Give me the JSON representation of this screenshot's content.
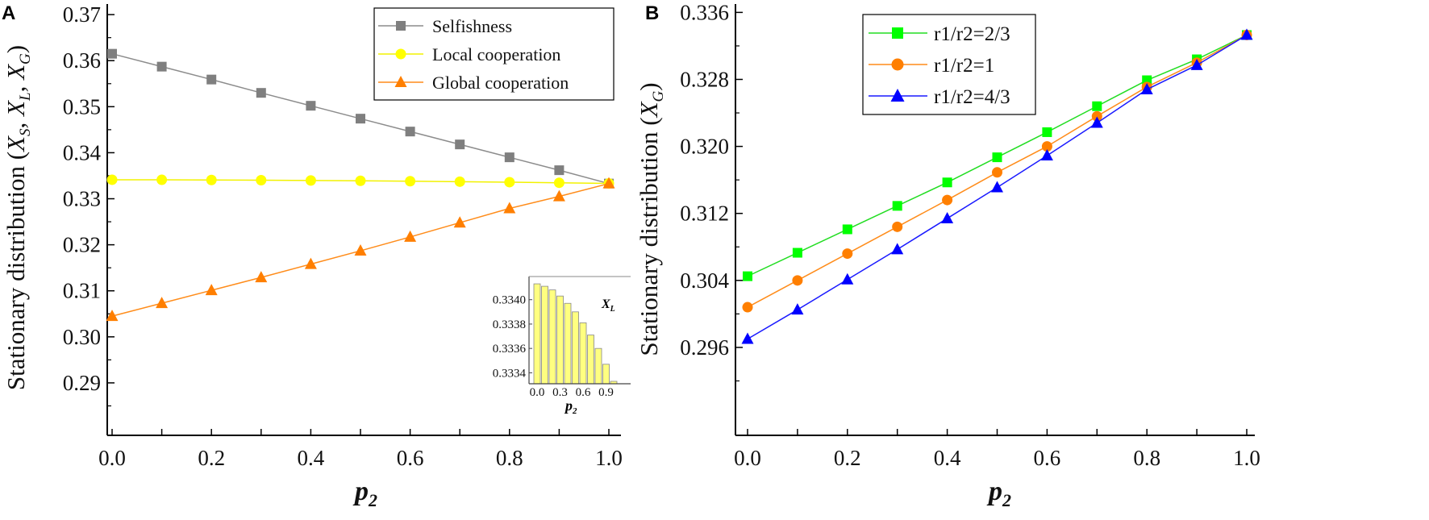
{
  "chart_data": [
    {
      "type": "line",
      "panel": "A",
      "title": "",
      "xlabel": "p",
      "xlabel_sub": "2",
      "ylabel": "Stationary distribution (X",
      "ylabel_parts": [
        "Stationary distribution (",
        "X",
        "S",
        ", ",
        "X",
        "L",
        ", ",
        "X",
        "G",
        ")"
      ],
      "xlim": [
        0,
        1
      ],
      "ylim": [
        0.2786,
        0.3723
      ],
      "xticks": [
        "0.0",
        "0.2",
        "0.4",
        "0.6",
        "0.8",
        "1.0"
      ],
      "yticks": [
        "0.29",
        "0.30",
        "0.31",
        "0.32",
        "0.33",
        "0.34",
        "0.35",
        "0.36",
        "0.37"
      ],
      "legend_position": "top-right",
      "x": [
        0,
        0.1,
        0.2,
        0.3,
        0.4,
        0.5,
        0.6,
        0.7,
        0.8,
        0.9,
        1.0
      ],
      "series": [
        {
          "name": "Selfishness",
          "color": "#7f7f7f",
          "line": "#8c8c8c",
          "marker": "square",
          "values": [
            0.3615,
            0.3587,
            0.3559,
            0.353,
            0.3502,
            0.3474,
            0.3446,
            0.3418,
            0.339,
            0.3362,
            0.3333
          ]
        },
        {
          "name": "Local cooperation",
          "color": "#ffff00",
          "line": "#f2f200",
          "marker": "circle",
          "values": [
            0.33413,
            0.33411,
            0.33408,
            0.33403,
            0.33397,
            0.3339,
            0.33381,
            0.33371,
            0.3336,
            0.33347,
            0.33333
          ]
        },
        {
          "name": "Global cooperation",
          "color": "#ff7f00",
          "line": "#ff8c1a",
          "marker": "triangle",
          "values": [
            0.3045,
            0.3073,
            0.3101,
            0.3129,
            0.3158,
            0.3187,
            0.3217,
            0.3248,
            0.3279,
            0.3305,
            0.3333
          ]
        }
      ],
      "inset": {
        "type": "bar",
        "label": "X",
        "label_sub": "L",
        "xlabel": "p",
        "xlabel_sub": "2",
        "x": [
          0,
          0.1,
          0.2,
          0.3,
          0.4,
          0.5,
          0.6,
          0.7,
          0.8,
          0.9,
          1.0
        ],
        "values": [
          0.33413,
          0.33411,
          0.33408,
          0.33403,
          0.33397,
          0.3339,
          0.33381,
          0.33371,
          0.3336,
          0.33347,
          0.33333
        ],
        "xticks": [
          "0.0",
          "0.3",
          "0.6",
          "0.9"
        ],
        "yticks": [
          "0.3334",
          "0.3336",
          "0.3338",
          "0.3340"
        ],
        "ylim": [
          0.33331,
          0.33419
        ],
        "color": "#ffff80"
      }
    },
    {
      "type": "line",
      "panel": "B",
      "title": "",
      "xlabel": "p",
      "xlabel_sub": "2",
      "ylabel_parts": [
        "Stationary distribution (",
        "X",
        "G",
        ")"
      ],
      "xlim": [
        0,
        1
      ],
      "ylim": [
        0.2855,
        0.337
      ],
      "xticks": [
        "0.0",
        "0.2",
        "0.4",
        "0.6",
        "0.8",
        "1.0"
      ],
      "yticks": [
        "0.296",
        "0.304",
        "0.312",
        "0.320",
        "0.328",
        "0.336"
      ],
      "legend_position": "top-left",
      "x": [
        0,
        0.1,
        0.2,
        0.3,
        0.4,
        0.5,
        0.6,
        0.7,
        0.8,
        0.9,
        1.0
      ],
      "series": [
        {
          "name": "r1/r2=2/3",
          "color": "#00ff00",
          "line": "#22dd22",
          "marker": "square",
          "values": [
            0.3045,
            0.3073,
            0.3101,
            0.3129,
            0.3157,
            0.3187,
            0.3217,
            0.3248,
            0.3279,
            0.3304,
            0.3333
          ]
        },
        {
          "name": "r1/r2=1",
          "color": "#ff7f00",
          "line": "#ff8c1a",
          "marker": "circle",
          "values": [
            0.3008,
            0.304,
            0.3072,
            0.3104,
            0.3136,
            0.3169,
            0.32,
            0.3236,
            0.3271,
            0.33,
            0.3333
          ]
        },
        {
          "name": "r1/r2=4/3",
          "color": "#0000ff",
          "line": "#1a1aff",
          "marker": "triangle",
          "values": [
            0.297,
            0.3005,
            0.3041,
            0.3077,
            0.3114,
            0.3151,
            0.3189,
            0.3228,
            0.3268,
            0.3297,
            0.3333
          ]
        }
      ]
    }
  ]
}
